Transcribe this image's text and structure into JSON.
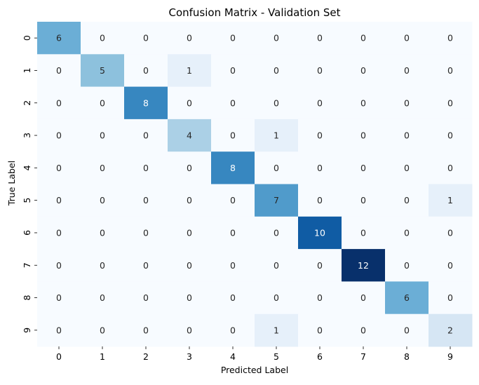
{
  "chart_data": {
    "type": "heatmap",
    "title": "Confusion Matrix - Validation Set",
    "xlabel": "Predicted Label",
    "ylabel": "True Label",
    "x_categories": [
      "0",
      "1",
      "2",
      "3",
      "4",
      "5",
      "6",
      "7",
      "8",
      "9"
    ],
    "y_categories": [
      "0",
      "1",
      "2",
      "3",
      "4",
      "5",
      "6",
      "7",
      "8",
      "9"
    ],
    "values": [
      [
        6,
        0,
        0,
        0,
        0,
        0,
        0,
        0,
        0,
        0
      ],
      [
        0,
        5,
        0,
        1,
        0,
        0,
        0,
        0,
        0,
        0
      ],
      [
        0,
        0,
        8,
        0,
        0,
        0,
        0,
        0,
        0,
        0
      ],
      [
        0,
        0,
        0,
        4,
        0,
        1,
        0,
        0,
        0,
        0
      ],
      [
        0,
        0,
        0,
        0,
        8,
        0,
        0,
        0,
        0,
        0
      ],
      [
        0,
        0,
        0,
        0,
        0,
        7,
        0,
        0,
        0,
        1
      ],
      [
        0,
        0,
        0,
        0,
        0,
        0,
        10,
        0,
        0,
        0
      ],
      [
        0,
        0,
        0,
        0,
        0,
        0,
        0,
        12,
        0,
        0
      ],
      [
        0,
        0,
        0,
        0,
        0,
        0,
        0,
        0,
        6,
        0
      ],
      [
        0,
        0,
        0,
        0,
        0,
        1,
        0,
        0,
        0,
        2
      ]
    ],
    "colormap": "Blues",
    "value_range": [
      0,
      12
    ],
    "colorbar": false,
    "grid": false
  }
}
